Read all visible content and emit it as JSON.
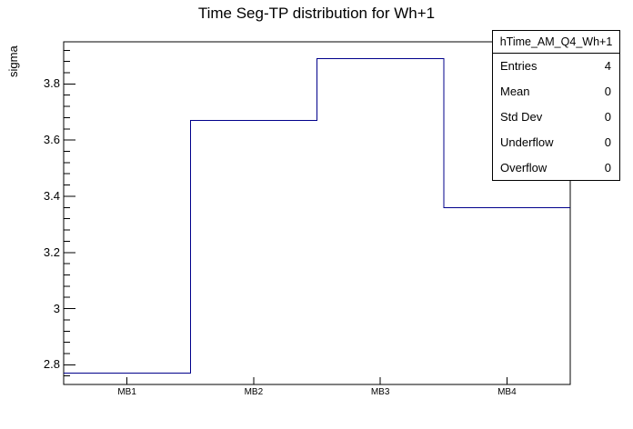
{
  "title": "Time Seg-TP distribution for Wh+1",
  "y_axis": {
    "label": "sigma",
    "ticks": [
      {
        "label": "3.8",
        "value": 3.8
      },
      {
        "label": "3.6",
        "value": 3.6
      },
      {
        "label": "3.4",
        "value": 3.4
      },
      {
        "label": "3.2",
        "value": 3.2
      },
      {
        "label": "3",
        "value": 3.0
      },
      {
        "label": "2.8",
        "value": 2.8
      }
    ]
  },
  "x_axis": {
    "categories": [
      "MB1",
      "MB2",
      "MB3",
      "MB4"
    ]
  },
  "stats_box": {
    "header": "hTime_AM_Q4_Wh+1",
    "rows": [
      {
        "label": "Entries",
        "value": "4"
      },
      {
        "label": "Mean",
        "value": "0"
      },
      {
        "label": "Std Dev",
        "value": "0"
      },
      {
        "label": "Underflow",
        "value": "0"
      },
      {
        "label": "Overflow",
        "value": "0"
      }
    ]
  },
  "colors": {
    "histogram_line": "#00008b",
    "frame": "#000000",
    "background": "#ffffff"
  },
  "chart_data": {
    "type": "line",
    "style": "step-histogram",
    "categories": [
      "MB1",
      "MB2",
      "MB3",
      "MB4"
    ],
    "values": [
      2.77,
      3.67,
      3.89,
      3.36
    ],
    "title": "Time Seg-TP distribution for Wh+1",
    "xlabel": "",
    "ylabel": "sigma",
    "ylim": [
      2.73,
      3.95
    ],
    "y_major_ticks": [
      2.8,
      3.0,
      3.2,
      3.4,
      3.6,
      3.8
    ],
    "y_minor_step": 0.04,
    "grid": false,
    "legend": "none"
  }
}
